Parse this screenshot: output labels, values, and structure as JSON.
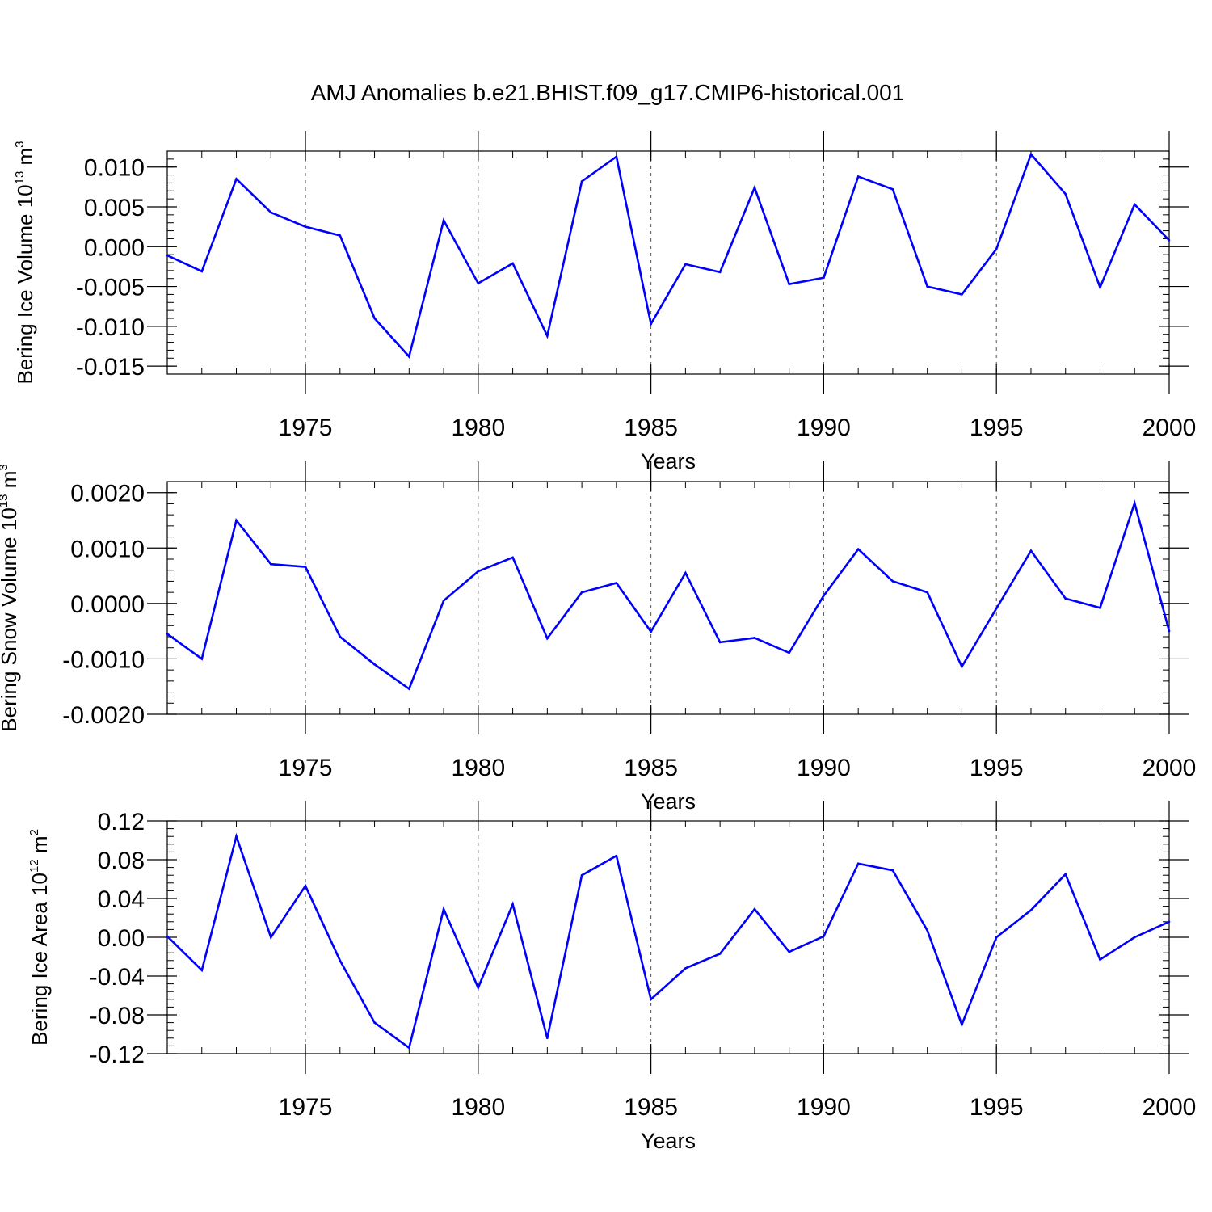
{
  "figure": {
    "title": "AMJ Anomalies b.e21.BHIST.f09_g17.CMIP6-historical.001"
  },
  "chart_data": [
    {
      "type": "line",
      "title": "AMJ Anomalies b.e21.BHIST.f09_g17.CMIP6-historical.001",
      "ylabel": "Bering Ice Volume 10",
      "ylabel_exp": "13",
      "ylabel_unit": "m",
      "ylabel_unit_exp": "3",
      "xlabel": "Years",
      "xlim": [
        1971,
        2000
      ],
      "ylim": [
        -0.016,
        0.012
      ],
      "yticks": [
        -0.015,
        -0.01,
        -0.005,
        0.0,
        0.005,
        0.01
      ],
      "ytick_labels": [
        "-0.015",
        "-0.010",
        "-0.005",
        "0.000",
        "0.005",
        "0.010"
      ],
      "ytick_minor_step": 0.001,
      "xticks": [
        1975,
        1980,
        1985,
        1990,
        1995,
        2000
      ],
      "xtick_labels": [
        "1975",
        "1980",
        "1985",
        "1990",
        "1995",
        "2000"
      ],
      "grid": "vertical dashed at major x ticks",
      "color": "#0000ff",
      "x": [
        1971,
        1972,
        1973,
        1974,
        1975,
        1976,
        1977,
        1978,
        1979,
        1980,
        1981,
        1982,
        1983,
        1984,
        1985,
        1986,
        1987,
        1988,
        1989,
        1990,
        1991,
        1992,
        1993,
        1994,
        1995,
        1996,
        1997,
        1998,
        1999,
        2000
      ],
      "values": [
        -0.0011,
        -0.0031,
        0.0085,
        0.0043,
        0.0025,
        0.0014,
        -0.009,
        -0.0138,
        0.0033,
        -0.0046,
        -0.0021,
        -0.0112,
        0.0082,
        0.0113,
        -0.0097,
        -0.0022,
        -0.0032,
        0.0074,
        -0.0047,
        -0.0039,
        0.0088,
        0.0072,
        -0.005,
        -0.006,
        -0.0003,
        0.0116,
        0.0066,
        -0.0051,
        0.0053,
        0.0008
      ]
    },
    {
      "type": "line",
      "ylabel": "Bering Snow Volume 10",
      "ylabel_exp": "13",
      "ylabel_unit": "m",
      "ylabel_unit_exp": "3",
      "xlabel": "Years",
      "xlim": [
        1971,
        2000
      ],
      "ylim": [
        -0.002,
        0.0022
      ],
      "yticks": [
        -0.002,
        -0.001,
        0.0,
        0.001,
        0.002
      ],
      "ytick_labels": [
        "-0.0020",
        "-0.0010",
        "0.0000",
        "0.0010",
        "0.0020"
      ],
      "ytick_minor_step": 0.0002,
      "xticks": [
        1975,
        1980,
        1985,
        1990,
        1995,
        2000
      ],
      "xtick_labels": [
        "1975",
        "1980",
        "1985",
        "1990",
        "1995",
        "2000"
      ],
      "grid": "vertical dashed at major x ticks",
      "color": "#0000ff",
      "x": [
        1971,
        1972,
        1973,
        1974,
        1975,
        1976,
        1977,
        1978,
        1979,
        1980,
        1981,
        1982,
        1983,
        1984,
        1985,
        1986,
        1987,
        1988,
        1989,
        1990,
        1991,
        1992,
        1993,
        1994,
        1995,
        1996,
        1997,
        1998,
        1999,
        2000
      ],
      "values": [
        -0.00055,
        -0.001,
        0.0015,
        0.00071,
        0.00066,
        -0.0006,
        -0.0011,
        -0.00154,
        5e-05,
        0.00058,
        0.00083,
        -0.00063,
        0.0002,
        0.00037,
        -0.00051,
        0.00055,
        -0.0007,
        -0.00062,
        -0.00089,
        0.00014,
        0.00098,
        0.0004,
        0.0002,
        -0.00114,
        -9e-05,
        0.00095,
        9e-05,
        -8e-05,
        0.00181,
        -0.0005
      ]
    },
    {
      "type": "line",
      "ylabel": "Bering Ice Area 10",
      "ylabel_exp": "12",
      "ylabel_unit": "m",
      "ylabel_unit_exp": "2",
      "xlabel": "Years",
      "xlim": [
        1971,
        2000
      ],
      "ylim": [
        -0.12,
        0.12
      ],
      "yticks": [
        -0.12,
        -0.08,
        -0.04,
        0.0,
        0.04,
        0.08,
        0.12
      ],
      "ytick_labels": [
        "-0.12",
        "-0.08",
        "-0.04",
        "0.00",
        "0.04",
        "0.08",
        "0.12"
      ],
      "ytick_minor_step": 0.008,
      "xticks": [
        1975,
        1980,
        1985,
        1990,
        1995,
        2000
      ],
      "xtick_labels": [
        "1975",
        "1980",
        "1985",
        "1990",
        "1995",
        "2000"
      ],
      "grid": "vertical dashed at major x ticks",
      "color": "#0000ff",
      "x": [
        1971,
        1972,
        1973,
        1974,
        1975,
        1976,
        1977,
        1978,
        1979,
        1980,
        1981,
        1982,
        1983,
        1984,
        1985,
        1986,
        1987,
        1988,
        1989,
        1990,
        1991,
        1992,
        1993,
        1994,
        1995,
        1996,
        1997,
        1998,
        1999,
        2000
      ],
      "values": [
        0.001,
        -0.034,
        0.104,
        0.0,
        0.053,
        -0.024,
        -0.088,
        -0.114,
        0.029,
        -0.052,
        0.034,
        -0.104,
        0.064,
        0.084,
        -0.064,
        -0.032,
        -0.017,
        0.029,
        -0.015,
        0.001,
        0.076,
        0.069,
        0.007,
        -0.09,
        0.0,
        0.028,
        0.065,
        -0.023,
        0.0,
        0.016
      ]
    }
  ]
}
